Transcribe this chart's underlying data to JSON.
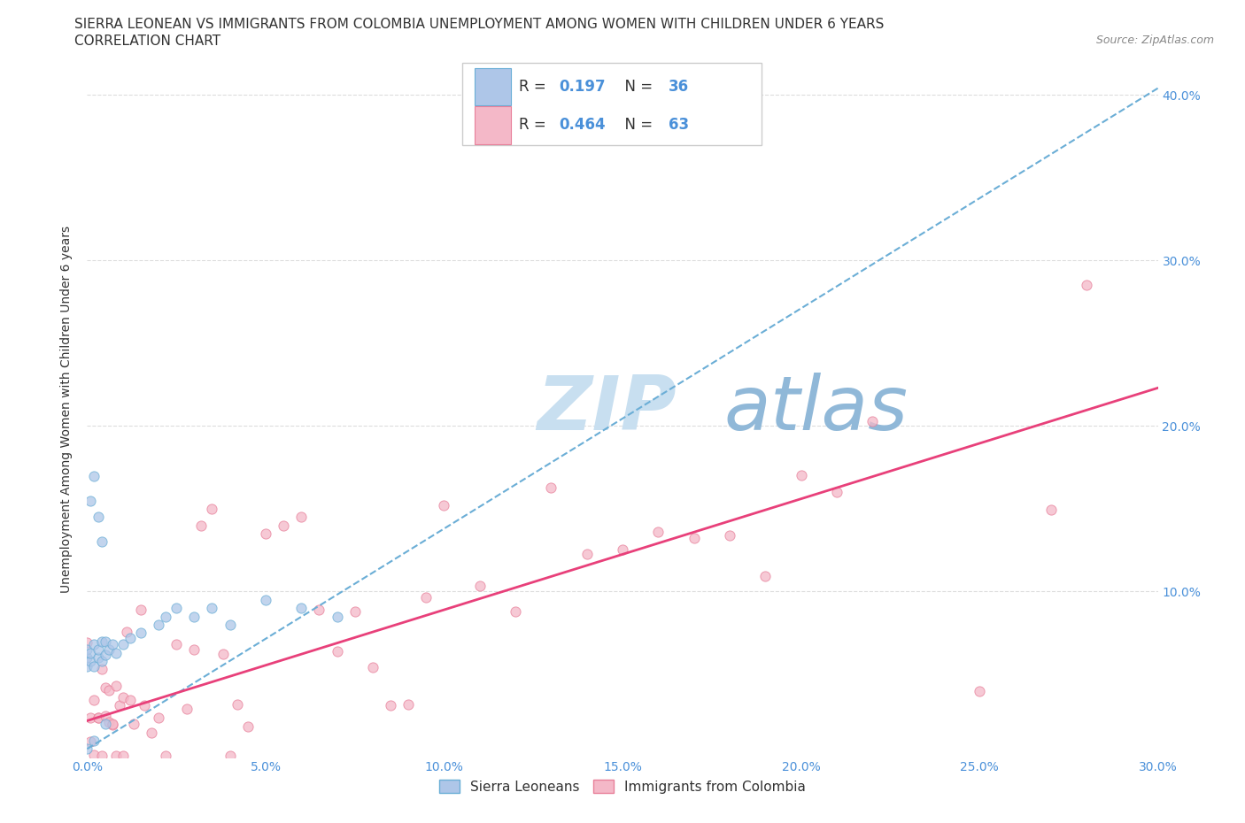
{
  "title_line1": "SIERRA LEONEAN VS IMMIGRANTS FROM COLOMBIA UNEMPLOYMENT AMONG WOMEN WITH CHILDREN UNDER 6 YEARS",
  "title_line2": "CORRELATION CHART",
  "source": "Source: ZipAtlas.com",
  "ylabel": "Unemployment Among Women with Children Under 6 years",
  "xlim": [
    0.0,
    0.3
  ],
  "ylim": [
    0.0,
    0.42
  ],
  "x_ticks": [
    0.0,
    0.05,
    0.1,
    0.15,
    0.2,
    0.25,
    0.3
  ],
  "y_ticks_right": [
    0.1,
    0.2,
    0.3,
    0.4
  ],
  "y_tick_right_labels": [
    "10.0%",
    "20.0%",
    "30.0%",
    "40.0%"
  ],
  "x_tick_labels": [
    "0.0%",
    "5.0%",
    "10.0%",
    "15.0%",
    "20.0%",
    "25.0%",
    "30.0%"
  ],
  "series": [
    {
      "name": "Sierra Leoneans",
      "color": "#aec6e8",
      "edge_color": "#6aaed6",
      "R": 0.197,
      "N": 36,
      "line_color": "#6baed6",
      "line_style": "--"
    },
    {
      "name": "Immigrants from Colombia",
      "color": "#f4b8c8",
      "edge_color": "#e8809a",
      "R": 0.464,
      "N": 63,
      "line_color": "#e8407a",
      "line_style": "-"
    }
  ],
  "watermark_zip_color": "#c8dff0",
  "watermark_atlas_color": "#90b8d8",
  "background_color": "#ffffff",
  "grid_color": "#dddddd",
  "title_fontsize": 11,
  "axis_label_fontsize": 10,
  "tick_fontsize": 10,
  "marker_size": 65,
  "marker_alpha": 0.75
}
